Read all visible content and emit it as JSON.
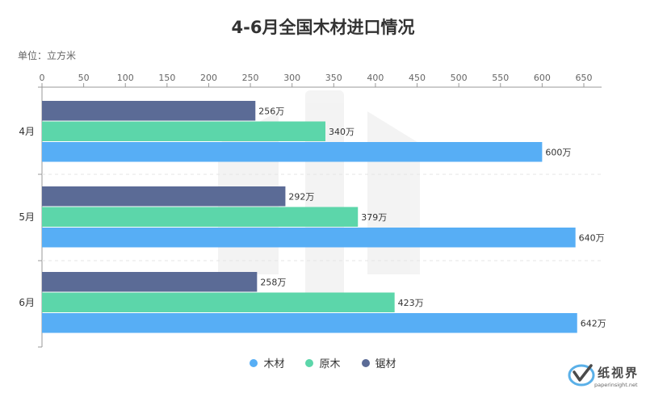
{
  "title": "4-6月全国木材进口情况",
  "unit_label": "单位：立方米",
  "logo": {
    "name": "纸视界",
    "url": "paperinsight.net"
  },
  "chart_data": {
    "type": "bar",
    "orientation": "horizontal",
    "categories": [
      "4月",
      "5月",
      "6月"
    ],
    "series": [
      {
        "name": "锯材",
        "values": [
          256,
          292,
          258
        ],
        "color": "#5b6b96"
      },
      {
        "name": "原木",
        "values": [
          340,
          379,
          423
        ],
        "color": "#5cd6aa"
      },
      {
        "name": "木材",
        "values": [
          600,
          640,
          642
        ],
        "color": "#57aef5"
      }
    ],
    "value_suffix": "万",
    "xlim": [
      0,
      650
    ],
    "xticks": [
      0,
      50,
      100,
      150,
      200,
      250,
      300,
      350,
      400,
      450,
      500,
      550,
      600,
      650
    ],
    "legend": {
      "position": "bottom",
      "order": [
        "木材",
        "原木",
        "锯材"
      ]
    },
    "grid": false
  }
}
